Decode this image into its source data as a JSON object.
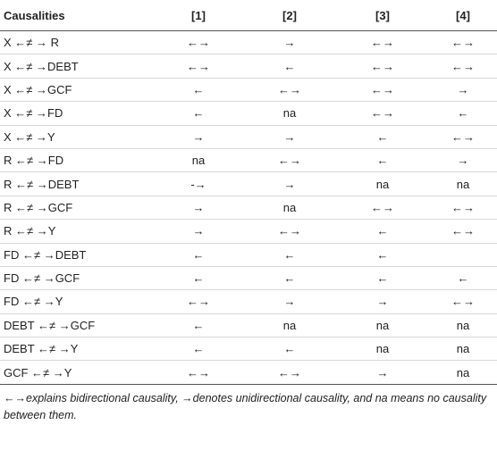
{
  "table": {
    "columns": [
      "Causalities",
      "[1]",
      "[2]",
      "[3]",
      "[4]"
    ],
    "rows": [
      [
        "X ←≠ → R",
        "←→",
        "→",
        "←→",
        "←→"
      ],
      [
        "X ←≠ →DEBT",
        "←→",
        "←",
        "←→",
        "←→"
      ],
      [
        "X ←≠ →GCF",
        "←",
        "←→",
        "←→",
        "→"
      ],
      [
        "X ←≠ →FD",
        "←",
        "na",
        "←→",
        "←"
      ],
      [
        "X ←≠ →Y",
        "→",
        "→",
        "←",
        "←→"
      ],
      [
        "R ←≠ →FD",
        "na",
        "←→",
        "←",
        "→"
      ],
      [
        "R ←≠ →DEBT",
        "-→",
        "→",
        "na",
        "na"
      ],
      [
        "R ←≠ →GCF",
        "→",
        "na",
        "←→",
        "←→"
      ],
      [
        "R ←≠ →Y",
        "→",
        "←→",
        "←",
        "←→"
      ],
      [
        "FD ←≠ →DEBT",
        "←",
        "←",
        "←",
        null
      ],
      [
        "FD ←≠ →GCF",
        "←",
        "←",
        "←",
        "←"
      ],
      [
        "FD ←≠ →Y",
        "←→",
        "→",
        "→",
        "←→"
      ],
      [
        "DEBT ←≠ →GCF",
        "←",
        "na",
        "na",
        "na"
      ],
      [
        "DEBT ←≠ →Y",
        "←",
        "←",
        "na",
        "na"
      ],
      [
        "GCF ←≠ →Y",
        "←→",
        "←→",
        "→",
        "na"
      ]
    ],
    "note": "←→explains bidirectional causality, →denotes unidirectional causality, and na means no causality between them."
  }
}
